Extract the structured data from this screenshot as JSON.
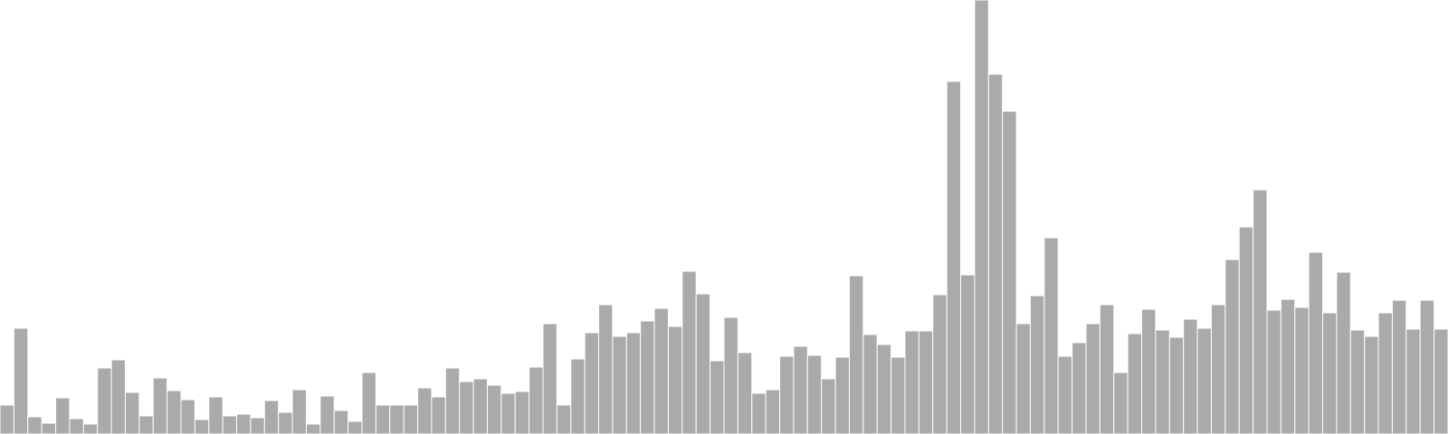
{
  "chart_data": {
    "type": "bar",
    "title": "",
    "xlabel": "",
    "ylabel": "",
    "grid": false,
    "legend": "none",
    "bar_color": "#aaaaaa",
    "ylim": [
      0,
      480
    ],
    "values": [
      32,
      117,
      19,
      12,
      40,
      17,
      11,
      73,
      82,
      46,
      20,
      62,
      48,
      38,
      16,
      41,
      20,
      22,
      18,
      37,
      24,
      49,
      11,
      42,
      26,
      14,
      68,
      32,
      32,
      32,
      51,
      41,
      73,
      58,
      61,
      54,
      45,
      47,
      74,
      122,
      32,
      83,
      112,
      143,
      108,
      112,
      125,
      139,
      119,
      180,
      155,
      81,
      129,
      90,
      45,
      49,
      86,
      97,
      87,
      61,
      85,
      175,
      110,
      99,
      85,
      114,
      114,
      154,
      390,
      176,
      480,
      398,
      357,
      122,
      153,
      217,
      86,
      101,
      122,
      143,
      68,
      111,
      138,
      115,
      107,
      127,
      117,
      143,
      193,
      229,
      270,
      137,
      149,
      140,
      201,
      134,
      179,
      115,
      108,
      134,
      148,
      116,
      148,
      116
    ]
  }
}
